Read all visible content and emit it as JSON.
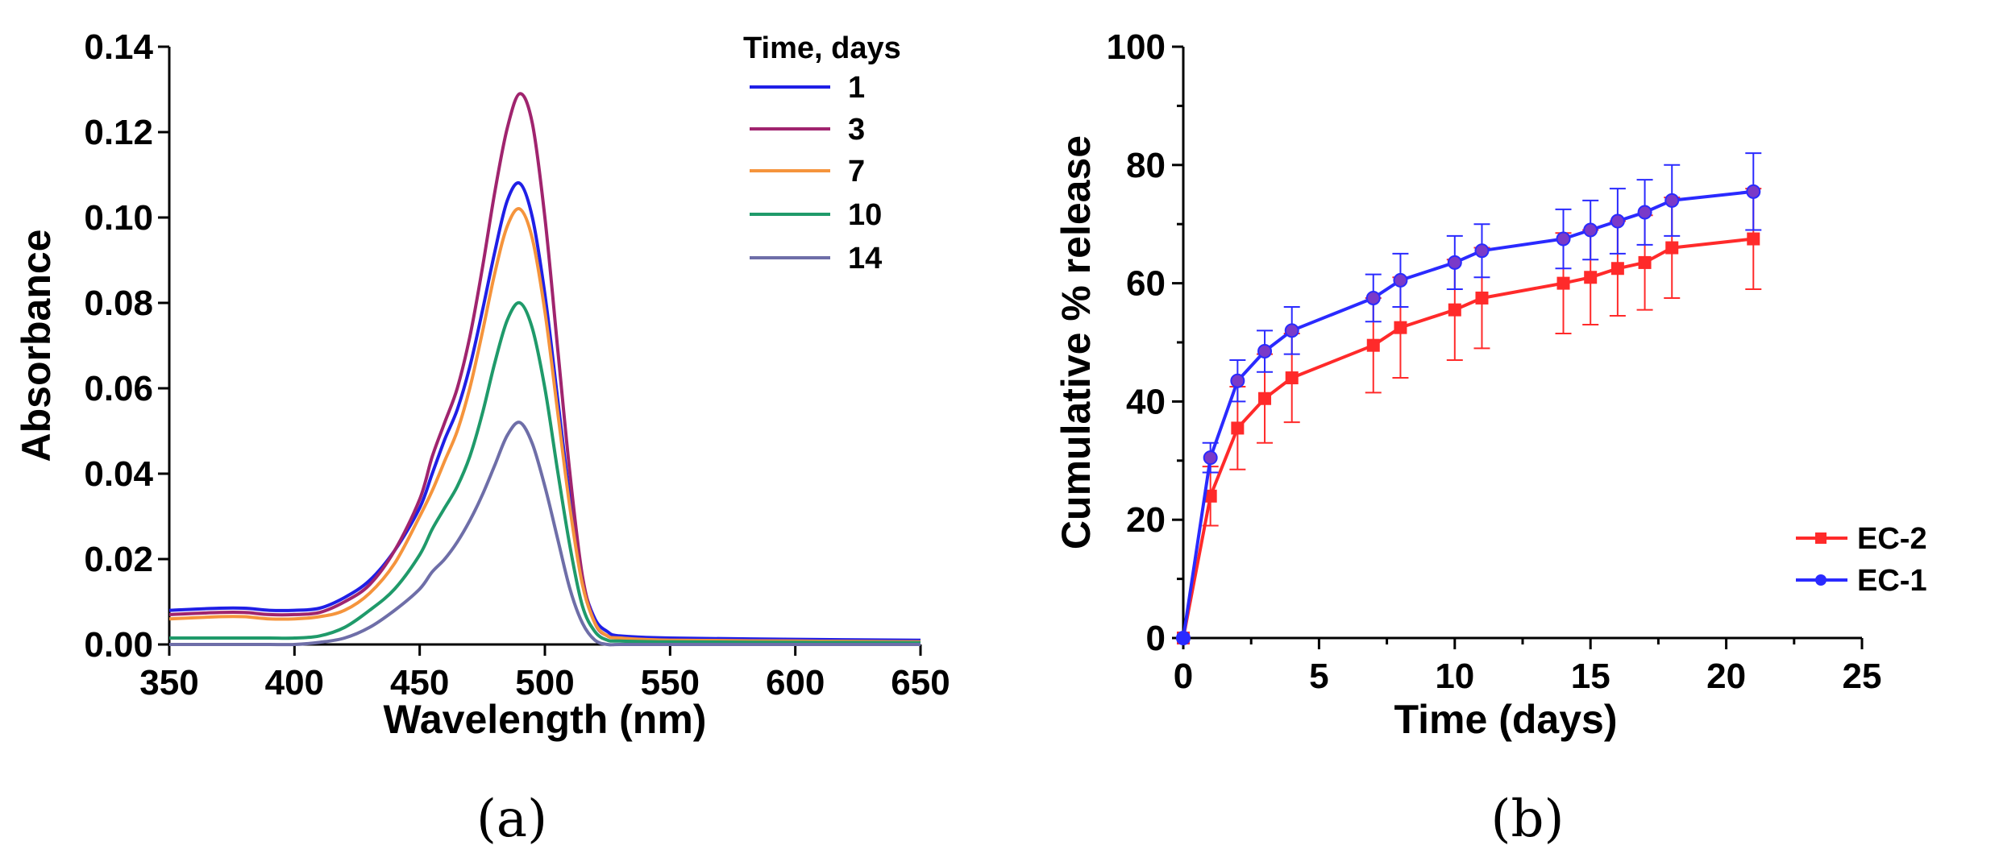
{
  "chart_data": [
    {
      "type": "line",
      "panel_label": "(a)",
      "xlabel": "Wavelength (nm)",
      "ylabel": "Absorbance",
      "xlim": [
        350,
        650
      ],
      "ylim": [
        0,
        0.14
      ],
      "xticks": [
        "350",
        "400",
        "450",
        "500",
        "550",
        "600",
        "650"
      ],
      "yticks": [
        "0.00",
        "0.02",
        "0.04",
        "0.06",
        "0.08",
        "0.10",
        "0.12",
        "0.14"
      ],
      "legend_title": "Time, days",
      "legend_position": "top-right",
      "grid": false,
      "x": [
        350,
        370,
        380,
        390,
        400,
        410,
        420,
        430,
        440,
        450,
        455,
        460,
        465,
        470,
        475,
        480,
        485,
        490,
        495,
        500,
        505,
        510,
        515,
        520,
        525,
        530,
        550,
        600,
        650
      ],
      "series": [
        {
          "name": "1",
          "color": "#1f1fe6",
          "values": [
            0.008,
            0.0085,
            0.0085,
            0.008,
            0.008,
            0.0085,
            0.011,
            0.015,
            0.022,
            0.032,
            0.04,
            0.048,
            0.055,
            0.065,
            0.078,
            0.092,
            0.104,
            0.108,
            0.1,
            0.082,
            0.058,
            0.034,
            0.015,
            0.006,
            0.003,
            0.002,
            0.0015,
            0.0012,
            0.001
          ]
        },
        {
          "name": "3",
          "color": "#a0246e",
          "values": [
            0.007,
            0.0075,
            0.0075,
            0.007,
            0.007,
            0.0075,
            0.01,
            0.014,
            0.022,
            0.034,
            0.044,
            0.052,
            0.06,
            0.072,
            0.088,
            0.106,
            0.121,
            0.129,
            0.122,
            0.1,
            0.07,
            0.04,
            0.016,
            0.005,
            0.002,
            0.0015,
            0.001,
            0.0008,
            0.0006
          ]
        },
        {
          "name": "7",
          "color": "#f5943c",
          "values": [
            0.006,
            0.0065,
            0.0065,
            0.006,
            0.006,
            0.0065,
            0.008,
            0.012,
            0.019,
            0.03,
            0.036,
            0.043,
            0.05,
            0.06,
            0.073,
            0.087,
            0.098,
            0.102,
            0.095,
            0.078,
            0.055,
            0.032,
            0.014,
            0.005,
            0.002,
            0.0015,
            0.001,
            0.0008,
            0.0006
          ]
        },
        {
          "name": "10",
          "color": "#1f9a6a",
          "values": [
            0.0015,
            0.0015,
            0.0015,
            0.0015,
            0.0015,
            0.002,
            0.004,
            0.008,
            0.013,
            0.021,
            0.027,
            0.032,
            0.037,
            0.044,
            0.054,
            0.066,
            0.076,
            0.08,
            0.074,
            0.06,
            0.041,
            0.023,
            0.009,
            0.003,
            0.001,
            0.0008,
            0.0006,
            0.0005,
            0.0004
          ]
        },
        {
          "name": "14",
          "color": "#6e6ea8",
          "values": [
            0.0,
            0.0,
            0.0,
            0.0,
            0.0,
            0.0005,
            0.0015,
            0.004,
            0.008,
            0.013,
            0.017,
            0.02,
            0.024,
            0.029,
            0.035,
            0.042,
            0.049,
            0.052,
            0.047,
            0.037,
            0.025,
            0.013,
            0.005,
            0.001,
            0.0,
            0.0,
            0.0,
            0.0,
            0.0
          ]
        }
      ]
    },
    {
      "type": "line",
      "panel_label": "(b)",
      "xlabel": "Time (days)",
      "ylabel": "Cumulative % release",
      "xlim": [
        0,
        25
      ],
      "ylim": [
        0,
        100
      ],
      "xticks": [
        "0",
        "5",
        "10",
        "15",
        "20",
        "25"
      ],
      "yticks": [
        "0",
        "20",
        "40",
        "60",
        "80",
        "100"
      ],
      "legend_position": "bottom-right",
      "grid": false,
      "x": [
        0,
        1,
        2,
        3,
        4,
        7,
        8,
        10,
        11,
        14,
        15,
        16,
        17,
        18,
        21
      ],
      "series": [
        {
          "name": "EC-2",
          "color": "#ff2a2a",
          "marker": "square",
          "values": [
            0,
            24,
            35.5,
            40.5,
            44,
            49.5,
            52.5,
            55.5,
            57.5,
            60,
            61,
            62.5,
            63.5,
            66,
            67.5
          ],
          "errors": [
            0,
            5,
            7,
            7.5,
            7.5,
            8,
            8.5,
            8.5,
            8.5,
            8.5,
            8,
            8,
            8,
            8.5,
            8.5
          ]
        },
        {
          "name": "EC-1",
          "color": "#2a2aff",
          "marker": "circle",
          "values": [
            0,
            30.5,
            43.5,
            48.5,
            52,
            57.5,
            60.5,
            63.5,
            65.5,
            67.5,
            69,
            70.5,
            72,
            74,
            75.5
          ],
          "errors": [
            0,
            2.5,
            3.5,
            3.5,
            4,
            4,
            4.5,
            4.5,
            4.5,
            5,
            5,
            5.5,
            5.5,
            6,
            6.5
          ]
        }
      ]
    }
  ]
}
